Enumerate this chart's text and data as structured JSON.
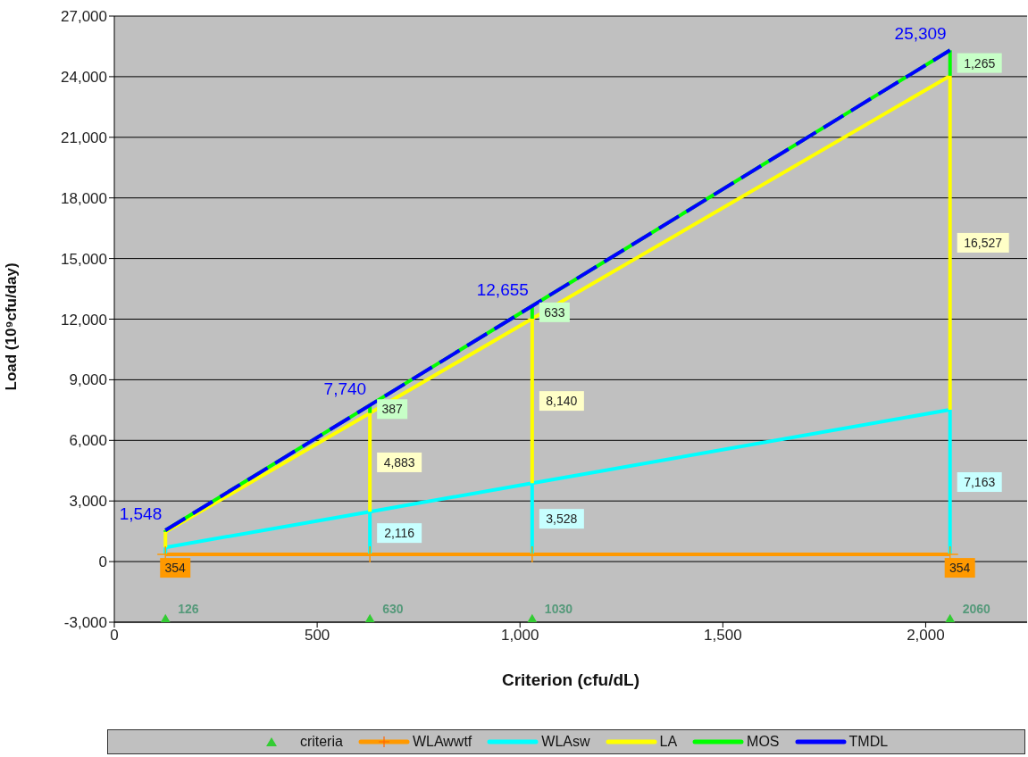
{
  "chart_data": {
    "type": "line",
    "xlabel": "Criterion (cfu/dL)",
    "ylabel": "Load (10⁹cfu/day)",
    "x": [
      126,
      630,
      1030,
      2060
    ],
    "xlim": [
      0,
      2250
    ],
    "xticks": [
      0,
      500,
      {
        "value": 1000,
        "label": "1,000"
      },
      {
        "value": 1500,
        "label": "1,500"
      },
      {
        "value": 2000,
        "label": "2,000"
      }
    ],
    "ylim": [
      -3000,
      27000
    ],
    "yticks": [
      {
        "value": -3000,
        "label": "-3,000"
      },
      0,
      {
        "value": 3000,
        "label": "3,000"
      },
      {
        "value": 6000,
        "label": "6,000"
      },
      {
        "value": 9000,
        "label": "9,000"
      },
      {
        "value": 12000,
        "label": "12,000"
      },
      {
        "value": 15000,
        "label": "15,000"
      },
      {
        "value": 18000,
        "label": "18,000"
      },
      {
        "value": 21000,
        "label": "21,000"
      },
      {
        "value": 24000,
        "label": "24,000"
      },
      {
        "value": 27000,
        "label": "27,000"
      }
    ],
    "grid": "y",
    "legend": "bottom",
    "series": [
      {
        "name": "criteria",
        "type": "scatter",
        "color": "#33cc33",
        "marker": "triangle",
        "values": [
          -2900,
          -2900,
          -2900,
          -2900
        ]
      },
      {
        "name": "WLAwwtf",
        "color": "#ff9900",
        "marker": "cross",
        "values": [
          354,
          354,
          354,
          354
        ],
        "value_labels": [
          "354",
          null,
          null,
          "354"
        ]
      },
      {
        "name": "WLAsw",
        "color": "#00ffff",
        "values": [
          704,
          2470,
          3882,
          7517
        ],
        "errors": [
          [
            354,
            704
          ],
          [
            354,
            2470
          ],
          [
            354,
            3882
          ],
          [
            354,
            7517
          ]
        ]
      },
      {
        "name": "LA",
        "color": "#ffff00",
        "values": [
          1471,
          7353,
          12022,
          24044
        ],
        "errors": [
          [
            704,
            1471
          ],
          [
            2470,
            7353
          ],
          [
            3882,
            12022
          ],
          [
            7517,
            24044
          ]
        ]
      },
      {
        "name": "MOS",
        "color": "#00ff00",
        "values": [
          1548,
          7740,
          12655,
          25309
        ],
        "errors": [
          [
            1471,
            1548
          ],
          [
            7353,
            7740
          ],
          [
            12022,
            12655
          ],
          [
            24044,
            25309
          ]
        ]
      },
      {
        "name": "TMDL",
        "color": "#0000ff",
        "line_style": "dashed",
        "values": [
          1548,
          7740,
          12655,
          25309
        ],
        "value_labels": [
          "1,548",
          "7,740",
          "12,655",
          "25,309"
        ]
      }
    ],
    "annotations": [
      {
        "text": "2,116",
        "x": 630,
        "y": 2470
      },
      {
        "text": "3,528",
        "x": 1030,
        "y": 3882
      },
      {
        "text": "7,163",
        "x": 2060,
        "y": 3936
      },
      {
        "text": "4,883",
        "x": 630,
        "y": 4912
      },
      {
        "text": "8,140",
        "x": 1030,
        "y": 7952
      },
      {
        "text": "16,527",
        "x": 2060,
        "y": 15781
      },
      {
        "text": "387",
        "x": 630,
        "y": 7740
      },
      {
        "text": "633",
        "x": 1030,
        "y": 12655
      },
      {
        "text": "1,265",
        "x": 2060,
        "y": 25309
      },
      {
        "text": "126",
        "x": 126,
        "y": -2900
      },
      {
        "text": "630",
        "x": 630,
        "y": -2900
      },
      {
        "text": "1030",
        "x": 1030,
        "y": -2900
      },
      {
        "text": "2060",
        "x": 2060,
        "y": -2900
      }
    ]
  }
}
